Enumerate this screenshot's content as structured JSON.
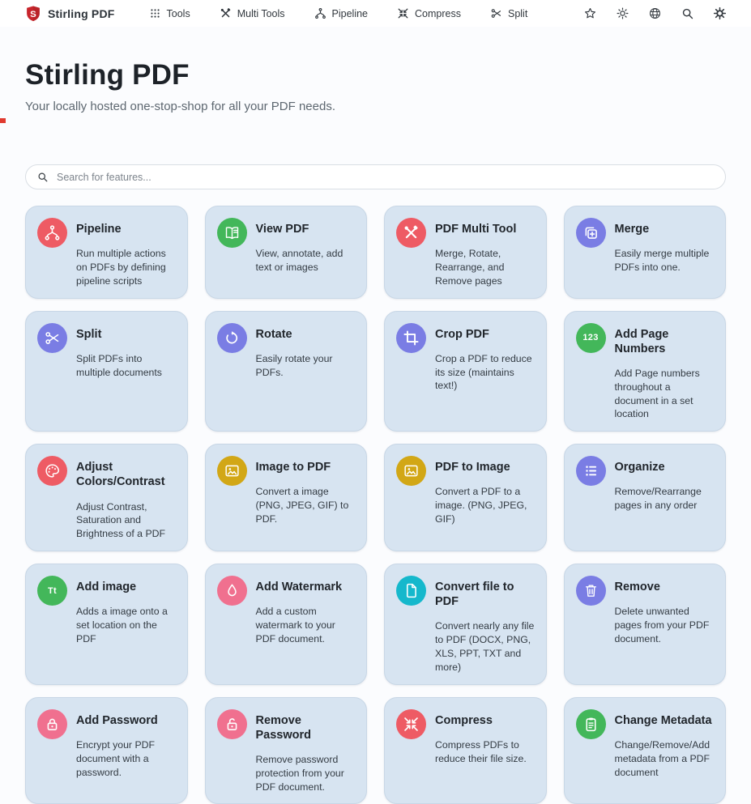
{
  "header": {
    "brand": "Stirling PDF",
    "nav_items": [
      {
        "label": "Tools",
        "icon": "grid-icon"
      },
      {
        "label": "Multi Tools",
        "icon": "multitool-icon"
      },
      {
        "label": "Pipeline",
        "icon": "pipeline-icon"
      },
      {
        "label": "Compress",
        "icon": "compress-icon"
      },
      {
        "label": "Split",
        "icon": "scissors-icon"
      }
    ],
    "action_icons": [
      {
        "name": "favorites-star-icon",
        "icon": "star-icon"
      },
      {
        "name": "theme-toggle-icon",
        "icon": "sun-icon"
      },
      {
        "name": "language-globe-icon",
        "icon": "globe-icon"
      },
      {
        "name": "search-icon",
        "icon": "search-icon"
      },
      {
        "name": "settings-gear-icon",
        "icon": "gear-icon"
      }
    ]
  },
  "hero": {
    "title": "Stirling PDF",
    "subtitle": "Your locally hosted one-stop-shop for all your PDF needs."
  },
  "search": {
    "placeholder": "Search for features..."
  },
  "colors": {
    "red": "#ee5b64",
    "green": "#43b75a",
    "indigo": "#7a7de4",
    "yellow": "#d2a716",
    "pink": "#f0708f",
    "teal": "#15b8cc",
    "card_bg": "#d7e4f1",
    "brand_red": "#c8252c"
  },
  "cards": [
    {
      "title": "Pipeline",
      "description": "Run multiple actions on PDFs by defining pipeline scripts",
      "icon": "pipeline-icon",
      "color": "red"
    },
    {
      "title": "View PDF",
      "description": "View, annotate, add text or images",
      "icon": "book-icon",
      "color": "green"
    },
    {
      "title": "PDF Multi Tool",
      "description": "Merge, Rotate, Rearrange, and Remove pages",
      "icon": "multitool-icon",
      "color": "red"
    },
    {
      "title": "Merge",
      "description": "Easily merge multiple PDFs into one.",
      "icon": "stack-plus-icon",
      "color": "indigo"
    },
    {
      "title": "Split",
      "description": "Split PDFs into multiple documents",
      "icon": "scissors-icon",
      "color": "indigo"
    },
    {
      "title": "Rotate",
      "description": "Easily rotate your PDFs.",
      "icon": "rotate-icon",
      "color": "indigo"
    },
    {
      "title": "Crop PDF",
      "description": "Crop a PDF to reduce its size (maintains text!)",
      "icon": "crop-icon",
      "color": "indigo"
    },
    {
      "title": "Add Page Numbers",
      "description": "Add Page numbers throughout a document in a set location",
      "icon": "numbers-123-icon",
      "color": "green",
      "text_glyph": "123"
    },
    {
      "title": "Adjust Colors/Contrast",
      "description": "Adjust Contrast, Saturation and Brightness of a PDF",
      "icon": "palette-icon",
      "color": "red"
    },
    {
      "title": "Image to PDF",
      "description": "Convert a image (PNG, JPEG, GIF) to PDF.",
      "icon": "image-icon",
      "color": "yellow"
    },
    {
      "title": "PDF to Image",
      "description": "Convert a PDF to a image. (PNG, JPEG, GIF)",
      "icon": "image-icon",
      "color": "yellow"
    },
    {
      "title": "Organize",
      "description": "Remove/Rearrange pages in any order",
      "icon": "list-icon",
      "color": "indigo"
    },
    {
      "title": "Add image",
      "description": "Adds a image onto a set location on the PDF",
      "icon": "text-Tt-icon",
      "color": "green",
      "text_glyph": "Tt"
    },
    {
      "title": "Add Watermark",
      "description": "Add a custom watermark to your PDF document.",
      "icon": "droplet-icon",
      "color": "pink"
    },
    {
      "title": "Convert file to PDF",
      "description": "Convert nearly any file to PDF (DOCX, PNG, XLS, PPT, TXT and more)",
      "icon": "file-icon",
      "color": "teal"
    },
    {
      "title": "Remove",
      "description": "Delete unwanted pages from your PDF document.",
      "icon": "trash-icon",
      "color": "indigo"
    },
    {
      "title": "Add Password",
      "description": "Encrypt your PDF document with a password.",
      "icon": "lock-icon",
      "color": "pink"
    },
    {
      "title": "Remove Password",
      "description": "Remove password protection from your PDF document.",
      "icon": "unlock-icon",
      "color": "pink"
    },
    {
      "title": "Compress",
      "description": "Compress PDFs to reduce their file size.",
      "icon": "compress-icon",
      "color": "red"
    },
    {
      "title": "Change Metadata",
      "description": "Change/Remove/Add metadata from a PDF document",
      "icon": "clipboard-icon",
      "color": "green"
    }
  ]
}
